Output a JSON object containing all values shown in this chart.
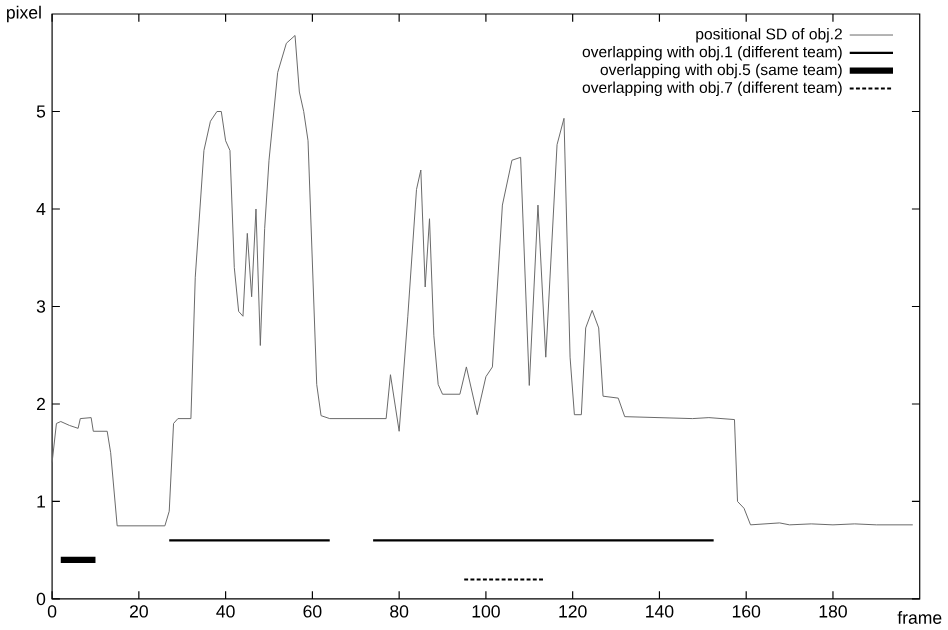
{
  "chart_data": {
    "type": "line",
    "xlabel": "frame",
    "ylabel": "pixel",
    "xlim": [
      0,
      200
    ],
    "ylim": [
      0,
      6
    ],
    "xticks": [
      0,
      20,
      40,
      60,
      80,
      100,
      120,
      140,
      160,
      180
    ],
    "yticks": [
      0,
      1,
      2,
      3,
      4,
      5
    ],
    "grid": false,
    "legend": "top right",
    "marker": "none",
    "series": [
      {
        "name": "positional SD of obj.2",
        "color": "#666666",
        "line_style": "solid",
        "x": [
          0,
          1,
          2,
          4,
          6,
          6.5,
          9,
          9.5,
          12.7,
          13.5,
          15,
          26,
          27,
          28,
          29,
          32,
          33,
          35,
          36.5,
          38,
          39,
          40,
          41,
          42,
          43,
          44,
          45,
          46,
          47,
          48,
          49,
          50,
          52,
          54,
          56,
          57,
          58,
          59,
          61,
          62,
          64,
          77,
          78,
          80,
          82,
          84,
          85,
          86,
          87,
          88,
          89,
          90,
          94,
          95.5,
          98,
          100,
          101.5,
          103.8,
          106,
          108,
          110,
          112,
          113.8,
          116.4,
          118,
          119.4,
          120.4,
          122,
          123,
          124.5,
          126,
          127,
          130.5,
          132,
          147.6,
          151.4,
          157.3,
          158,
          159.5,
          161,
          167.7,
          170,
          175,
          180,
          185,
          190,
          198.4
        ],
        "values": [
          1.4,
          1.8,
          1.82,
          1.78,
          1.75,
          1.85,
          1.86,
          1.72,
          1.72,
          1.5,
          0.75,
          0.75,
          0.9,
          1.8,
          1.85,
          1.85,
          3.3,
          4.6,
          4.9,
          5.0,
          5.0,
          4.7,
          4.6,
          3.4,
          2.95,
          2.9,
          3.75,
          3.1,
          4.0,
          2.6,
          3.8,
          4.5,
          5.4,
          5.7,
          5.78,
          5.2,
          5.0,
          4.7,
          2.2,
          1.88,
          1.85,
          1.85,
          2.3,
          1.72,
          2.9,
          4.2,
          4.4,
          3.2,
          3.9,
          2.7,
          2.2,
          2.1,
          2.1,
          2.38,
          1.89,
          2.28,
          2.38,
          4.04,
          4.5,
          4.53,
          2.19,
          4.04,
          2.48,
          4.66,
          4.93,
          2.48,
          1.89,
          1.89,
          2.78,
          2.96,
          2.78,
          2.08,
          2.06,
          1.87,
          1.85,
          1.86,
          1.84,
          1.0,
          0.93,
          0.76,
          0.78,
          0.76,
          0.77,
          0.76,
          0.77,
          0.76,
          0.76
        ]
      },
      {
        "name": "overlapping with obj.1 (different team)",
        "color": "#000000",
        "line_style": "solid",
        "x": [
          27,
          64,
          69,
          74,
          152.5
        ],
        "values": [
          0.6,
          0.6,
          null,
          0.6,
          0.6
        ]
      },
      {
        "name": "overlapping with obj.5 (same team)",
        "color": "#000000",
        "line_style": "solid",
        "x": [
          2,
          10
        ],
        "values": [
          0.4,
          0.4
        ]
      },
      {
        "name": "overlapping with obj.7 (different team)",
        "color": "#000000",
        "line_style": "dashed",
        "x": [
          95,
          113.7
        ],
        "values": [
          0.2,
          0.2
        ]
      }
    ]
  }
}
